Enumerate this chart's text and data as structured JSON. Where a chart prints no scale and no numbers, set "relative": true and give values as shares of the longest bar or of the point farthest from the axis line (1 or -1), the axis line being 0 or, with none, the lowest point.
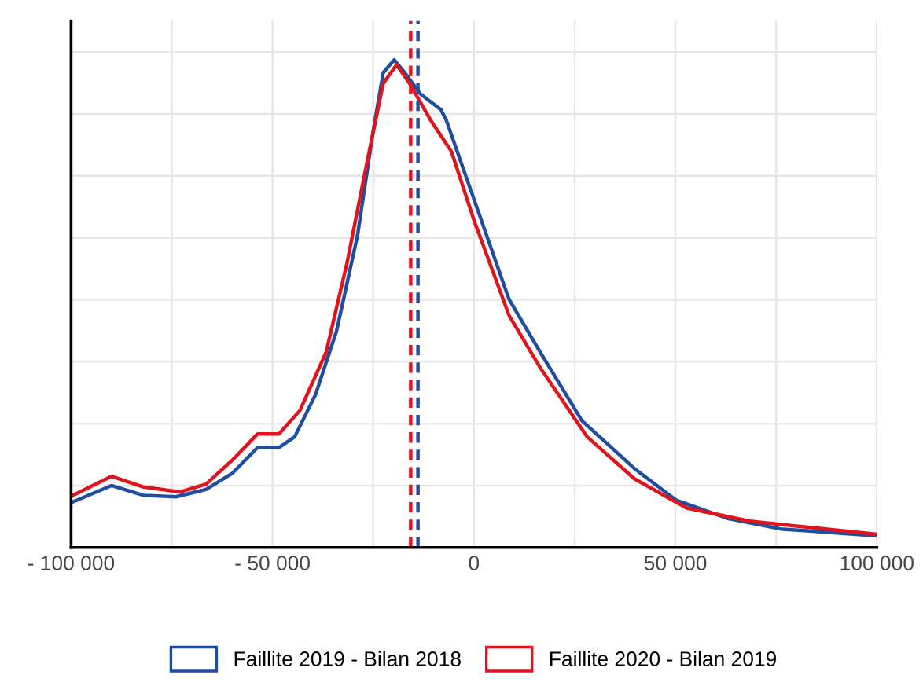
{
  "chart_data": {
    "type": "line",
    "relative": true,
    "grid": true,
    "legend": "bottom",
    "marker": "none",
    "line_style": "solid",
    "xlim": [
      -100000,
      100000
    ],
    "xticks": [
      {
        "value": -100000,
        "label": "- 100 000"
      },
      {
        "value": -75000,
        "label": null
      },
      {
        "value": -50000,
        "label": "- 50 000"
      },
      {
        "value": -25000,
        "label": null
      },
      0,
      {
        "value": 25000,
        "label": null
      },
      {
        "value": 50000,
        "label": "50 000"
      },
      {
        "value": 75000,
        "label": null
      },
      {
        "value": 100000,
        "label": "100 000"
      }
    ],
    "series": [
      {
        "name": "Faillite 2019 - Bilan 2018",
        "color": "#1f4ea0",
        "x": [
          -100000,
          -90000,
          -82000,
          -74000,
          -66500,
          -60000,
          -53700,
          -48400,
          -44500,
          -39300,
          -34100,
          -28900,
          -25000,
          -22500,
          -19800,
          -17200,
          -13300,
          -8200,
          -6900,
          0,
          8700,
          16500,
          26800,
          39800,
          50200,
          63200,
          76100,
          100000
        ],
        "values": [
          0.092,
          0.127,
          0.107,
          0.104,
          0.119,
          0.152,
          0.205,
          0.205,
          0.227,
          0.314,
          0.444,
          0.64,
          0.855,
          0.974,
          1,
          0.974,
          0.93,
          0.898,
          0.877,
          0.714,
          0.509,
          0.4,
          0.26,
          0.162,
          0.097,
          0.059,
          0.038,
          0.024
        ]
      },
      {
        "name": "Faillite 2020 - Bilan 2019",
        "color": "#e0141c",
        "x": [
          -100000,
          -90000,
          -82000,
          -73000,
          -66500,
          -60000,
          -53700,
          -48400,
          -43200,
          -36700,
          -31500,
          -26300,
          -22500,
          -19200,
          -16000,
          -10800,
          -5600,
          0,
          8700,
          16500,
          28100,
          39800,
          52800,
          68400,
          100000
        ],
        "values": [
          0.105,
          0.146,
          0.124,
          0.114,
          0.13,
          0.179,
          0.233,
          0.233,
          0.281,
          0.4,
          0.584,
          0.8,
          0.952,
          0.99,
          0.952,
          0.877,
          0.812,
          0.671,
          0.476,
          0.368,
          0.227,
          0.141,
          0.081,
          0.054,
          0.027
        ]
      }
    ],
    "ref_lines": [
      {
        "axis": "x",
        "value": -15700,
        "color": "#e0141c",
        "line_style": "dashed"
      },
      {
        "axis": "x",
        "value": -13900,
        "color": "#1f4ea0",
        "line_style": "dashed"
      }
    ]
  }
}
